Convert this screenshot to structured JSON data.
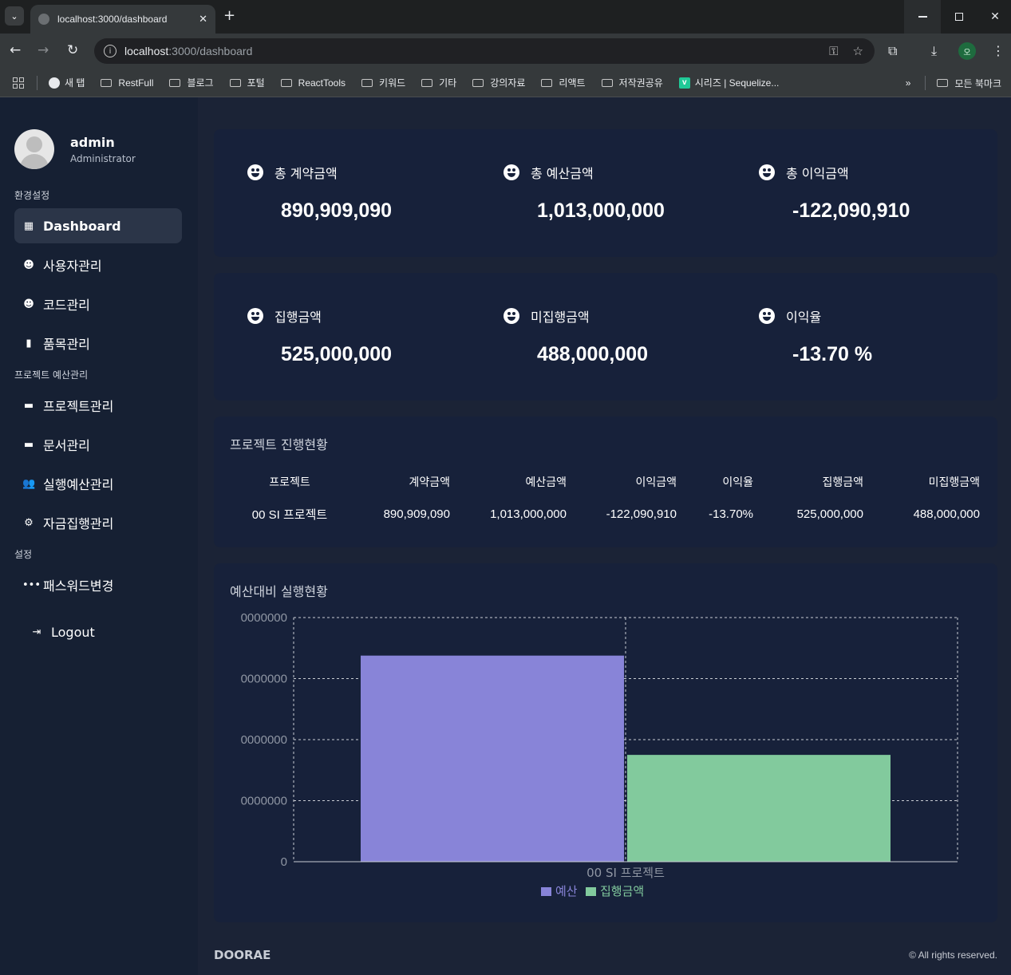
{
  "browser": {
    "tab_title": "localhost:3000/dashboard",
    "url_host": "localhost",
    "url_path": ":3000/dashboard",
    "bookmarks": [
      "새 탭",
      "RestFull",
      "블로그",
      "포털",
      "ReactTools",
      "키워드",
      "기타",
      "강의자료",
      "리액트",
      "저작권공유",
      "시리즈 | Sequelize..."
    ],
    "all_bookmarks": "모든 북마크",
    "profile_initial": "오"
  },
  "sidebar": {
    "user_name": "admin",
    "user_role": "Administrator",
    "section_env": "환경설정",
    "section_project": "프로젝트 예산관리",
    "section_settings": "설정",
    "items": {
      "dashboard": "Dashboard",
      "users": "사용자관리",
      "codes": "코드관리",
      "products": "품목관리",
      "projects": "프로젝트관리",
      "documents": "문서관리",
      "exec_budget": "실행예산관리",
      "fund_exec": "자금집행관리",
      "password": "패스워드변경",
      "logout": "Logout"
    }
  },
  "stats": {
    "contract": {
      "label": "총 계약금액",
      "value": "890,909,090"
    },
    "budget": {
      "label": "총 예산금액",
      "value": "1,013,000,000"
    },
    "profit": {
      "label": "총 이익금액",
      "value": "-122,090,910"
    },
    "executed": {
      "label": "집행금액",
      "value": "525,000,000"
    },
    "unexecuted": {
      "label": "미집행금액",
      "value": "488,000,000"
    },
    "profit_rate": {
      "label": "이익율",
      "value": "-13.70 %"
    }
  },
  "progress": {
    "title": "프로젝트 진행현황",
    "headers": [
      "프로젝트",
      "계약금액",
      "예산금액",
      "이익금액",
      "이익율",
      "집행금액",
      "미집행금액"
    ],
    "rows": [
      [
        "00 SI 프로젝트",
        "890,909,090",
        "1,013,000,000",
        "-122,090,910",
        "-13.70%",
        "525,000,000",
        "488,000,000"
      ]
    ]
  },
  "chart_data": {
    "type": "bar",
    "title": "예산대비 실행현황",
    "categories": [
      "00 SI 프로젝트"
    ],
    "series": [
      {
        "name": "예산",
        "values": [
          1013000000
        ],
        "color": "#8884d8"
      },
      {
        "name": "집행금액",
        "values": [
          525000000
        ],
        "color": "#82ca9d"
      }
    ],
    "yticks": [
      "0",
      "0000000",
      "0000000",
      "0000000",
      "0000000"
    ],
    "ylim": [
      0,
      1200000000
    ],
    "grid": true,
    "legend": "bottom"
  },
  "footer": {
    "brand": "DOORAE",
    "copyright": "© All rights reserved."
  }
}
